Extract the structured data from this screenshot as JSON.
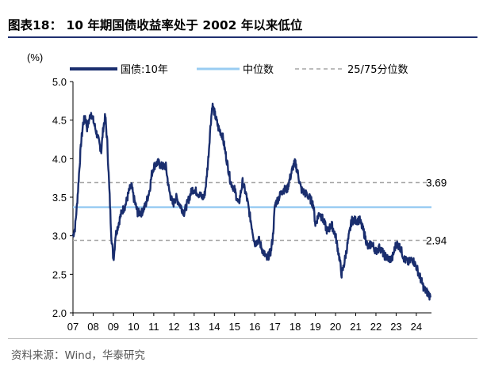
{
  "header": {
    "title": "图表18：  10 年期国债收益率处于 2002 年以来低位"
  },
  "footer": {
    "source": "资料来源：Wind，华泰研究"
  },
  "chart_data": {
    "type": "line",
    "title": "10 年期国债收益率处于 2002 年以来低位",
    "ylabel": "(%)",
    "xlabel": "",
    "ylim": [
      2.0,
      5.0
    ],
    "yticks": [
      "5.0",
      "4.5",
      "4.0",
      "3.5",
      "3.0",
      "2.5",
      "2.0"
    ],
    "xlim": [
      2007.0,
      2024.75
    ],
    "xticks": [
      "07",
      "08",
      "09",
      "10",
      "11",
      "12",
      "13",
      "14",
      "15",
      "16",
      "17",
      "18",
      "19",
      "20",
      "21",
      "22",
      "23",
      "24"
    ],
    "legend": {
      "placement": "top",
      "entries": [
        "国债:10年",
        "中位数",
        "25/75分位数"
      ]
    },
    "colors": {
      "series": "#1a2e6e",
      "median": "#99ccf2",
      "quartile": "#a6a6a6"
    },
    "median": 3.37,
    "quartiles": [
      2.94,
      3.69
    ],
    "annotations": [
      "3.69",
      "2.94"
    ],
    "series": [
      {
        "name": "国债:10年",
        "x": [
          2007.0,
          2007.1,
          2007.2,
          2007.3,
          2007.4,
          2007.5,
          2007.6,
          2007.7,
          2007.8,
          2007.9,
          2008.0,
          2008.1,
          2008.2,
          2008.3,
          2008.4,
          2008.5,
          2008.6,
          2008.7,
          2008.8,
          2008.9,
          2009.0,
          2009.05,
          2009.1,
          2009.2,
          2009.3,
          2009.4,
          2009.5,
          2009.6,
          2009.7,
          2009.8,
          2009.9,
          2010.0,
          2010.2,
          2010.4,
          2010.6,
          2010.8,
          2010.9,
          2011.0,
          2011.2,
          2011.4,
          2011.6,
          2011.75,
          2011.85,
          2011.95,
          2012.1,
          2012.3,
          2012.5,
          2012.7,
          2012.9,
          2013.0,
          2013.2,
          2013.4,
          2013.5,
          2013.6,
          2013.7,
          2013.8,
          2013.9,
          2014.0,
          2014.2,
          2014.4,
          2014.6,
          2014.8,
          2015.0,
          2015.2,
          2015.4,
          2015.6,
          2015.8,
          2016.0,
          2016.2,
          2016.4,
          2016.6,
          2016.8,
          2016.9,
          2017.0,
          2017.2,
          2017.4,
          2017.6,
          2017.8,
          2017.9,
          2018.0,
          2018.1,
          2018.3,
          2018.5,
          2018.7,
          2018.9,
          2019.0,
          2019.2,
          2019.4,
          2019.6,
          2019.8,
          2020.0,
          2020.2,
          2020.3,
          2020.4,
          2020.6,
          2020.8,
          2021.0,
          2021.2,
          2021.4,
          2021.6,
          2021.8,
          2022.0,
          2022.2,
          2022.4,
          2022.6,
          2022.8,
          2023.0,
          2023.2,
          2023.4,
          2023.6,
          2023.8,
          2024.0,
          2024.2,
          2024.4,
          2024.6,
          2024.7
        ],
        "values": [
          3.0,
          3.1,
          3.4,
          3.8,
          4.2,
          4.45,
          4.55,
          4.4,
          4.5,
          4.6,
          4.5,
          4.4,
          4.3,
          4.2,
          4.1,
          4.4,
          4.55,
          4.2,
          3.6,
          3.0,
          2.7,
          2.8,
          3.0,
          3.1,
          3.2,
          3.3,
          3.35,
          3.4,
          3.5,
          3.6,
          3.65,
          3.5,
          3.3,
          3.3,
          3.4,
          3.6,
          3.8,
          3.9,
          3.95,
          3.9,
          3.9,
          3.6,
          3.5,
          3.4,
          3.5,
          3.4,
          3.3,
          3.45,
          3.6,
          3.6,
          3.55,
          3.5,
          3.5,
          3.7,
          4.0,
          4.4,
          4.7,
          4.6,
          4.4,
          4.3,
          4.0,
          3.7,
          3.6,
          3.4,
          3.7,
          3.5,
          3.2,
          2.9,
          2.95,
          2.8,
          2.7,
          2.8,
          3.0,
          3.4,
          3.5,
          3.6,
          3.6,
          3.8,
          3.9,
          3.95,
          3.85,
          3.6,
          3.55,
          3.5,
          3.4,
          3.15,
          3.3,
          3.2,
          3.05,
          3.15,
          3.0,
          2.7,
          2.5,
          2.6,
          2.9,
          3.2,
          3.2,
          3.2,
          3.05,
          2.85,
          2.9,
          2.8,
          2.85,
          2.75,
          2.7,
          2.7,
          2.9,
          2.85,
          2.7,
          2.65,
          2.7,
          2.6,
          2.45,
          2.3,
          2.25,
          2.2
        ]
      }
    ]
  }
}
